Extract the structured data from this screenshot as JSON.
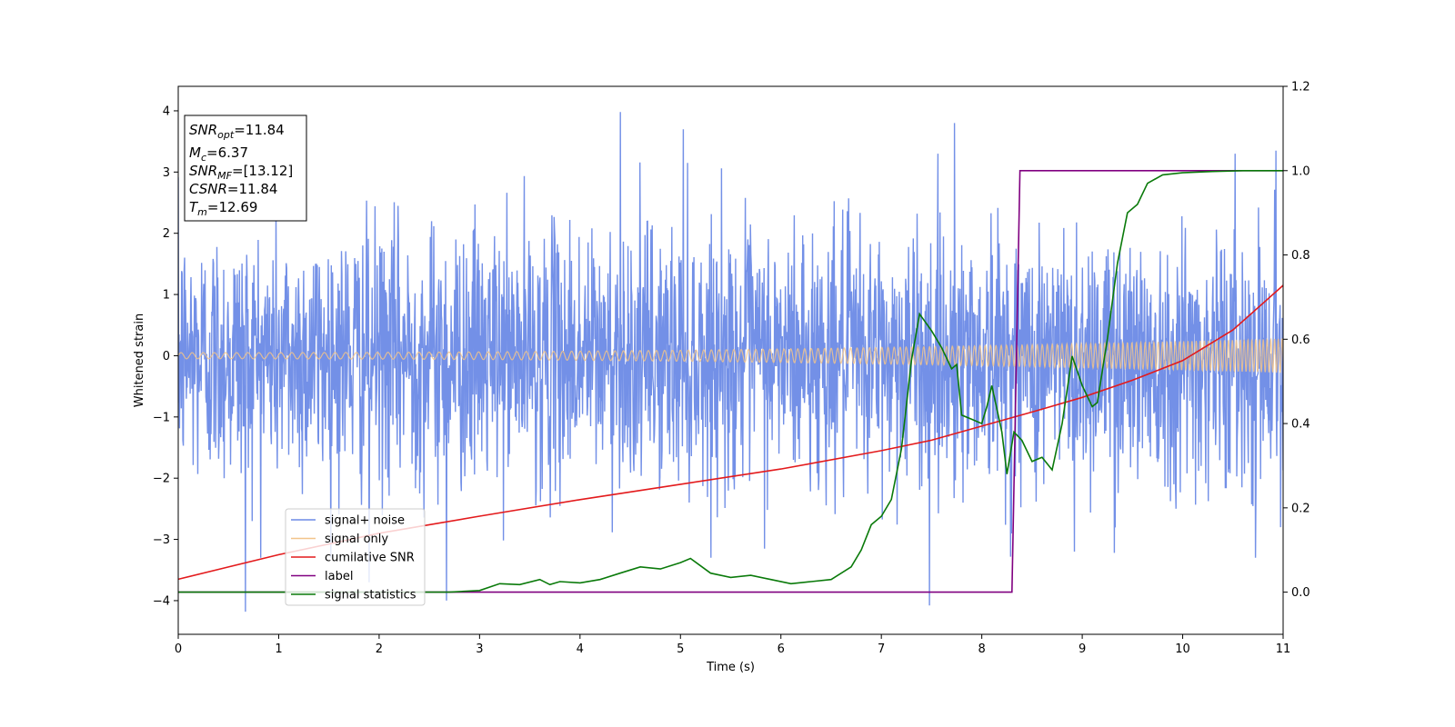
{
  "chart_data": {
    "type": "line",
    "xlabel": "Time (s)",
    "ylabel": "Whitened strain",
    "xlim": [
      0,
      11
    ],
    "ylim": [
      -4.55,
      4.4
    ],
    "y2lim": [
      -0.1,
      1.2
    ],
    "x_ticks": [
      0,
      1,
      2,
      3,
      4,
      5,
      6,
      7,
      8,
      9,
      10,
      11
    ],
    "y_ticks": [
      -4,
      -3,
      -2,
      -1,
      0,
      1,
      2,
      3,
      4
    ],
    "y2_ticks": [
      0.0,
      0.2,
      0.4,
      0.6,
      0.8,
      1.0,
      1.2
    ],
    "y2_tick_labels": [
      "0.0",
      "0.2",
      "0.4",
      "0.6",
      "0.8",
      "1.0",
      "1.2"
    ],
    "grid": false,
    "legend": {
      "placement": "lower-left",
      "entries": [
        "signal+ noise",
        "signal only",
        "cumilative SNR",
        "label",
        "signal statistics"
      ]
    },
    "annotation": {
      "lines": [
        {
          "base": "SNR",
          "sub": "opt",
          "value": "=11.84"
        },
        {
          "base": "M",
          "sub": "c",
          "value": "=6.37"
        },
        {
          "base": "SNR",
          "sub": "MF",
          "value": "=[13.12]"
        },
        {
          "base": "CSNR",
          "sub": "",
          "value": "=11.84"
        },
        {
          "base": "T",
          "sub": "m",
          "value": "=12.69"
        }
      ]
    },
    "series": [
      {
        "name": "signal+ noise",
        "axis": "left",
        "color": "#6b8ae6",
        "kind": "noise",
        "std": 1.05,
        "extremes": [
          [
            0.67,
            -4.18
          ],
          [
            1.9,
            -3.7
          ],
          [
            4.4,
            3.98
          ],
          [
            2.67,
            -4.0
          ],
          [
            5.03,
            3.7
          ],
          [
            7.48,
            -4.08
          ],
          [
            7.73,
            3.8
          ],
          [
            10.93,
            3.35
          ],
          [
            9.32,
            -3.22
          ],
          [
            8.92,
            -3.2
          ]
        ]
      },
      {
        "name": "signal only",
        "axis": "left",
        "color": "#f2c48a",
        "kind": "chirp",
        "amplitude_start": 0.05,
        "amplitude_end": 0.28
      },
      {
        "name": "cumilative SNR",
        "axis": "left",
        "color": "#e31a1c",
        "x": [
          0,
          0.5,
          1,
          2,
          3,
          4,
          5,
          6,
          7,
          7.5,
          8,
          8.5,
          9,
          9.5,
          10,
          10.5,
          11
        ],
        "y": [
          -3.65,
          -3.45,
          -3.25,
          -2.9,
          -2.62,
          -2.35,
          -2.1,
          -1.85,
          -1.55,
          -1.38,
          -1.15,
          -0.92,
          -0.68,
          -0.4,
          -0.08,
          0.42,
          1.15
        ]
      },
      {
        "name": "label",
        "axis": "right",
        "color": "#800080",
        "x": [
          0,
          8.3,
          8.38,
          11
        ],
        "y": [
          0.0,
          0.0,
          1.0,
          1.0
        ]
      },
      {
        "name": "signal statistics",
        "axis": "right",
        "color": "#0a7a0a",
        "x": [
          0,
          1,
          2,
          2.7,
          3,
          3.2,
          3.4,
          3.6,
          3.7,
          3.8,
          4.0,
          4.2,
          4.4,
          4.6,
          4.8,
          5.0,
          5.1,
          5.3,
          5.5,
          5.7,
          5.9,
          6.1,
          6.3,
          6.5,
          6.7,
          6.8,
          6.9,
          7.0,
          7.1,
          7.2,
          7.3,
          7.38,
          7.5,
          7.6,
          7.7,
          7.75,
          7.8,
          7.9,
          8.0,
          8.05,
          8.1,
          8.2,
          8.25,
          8.32,
          8.4,
          8.5,
          8.6,
          8.7,
          8.8,
          8.9,
          9.0,
          9.1,
          9.15,
          9.25,
          9.35,
          9.45,
          9.55,
          9.65,
          9.8,
          10.0,
          10.3,
          10.6,
          11.0
        ],
        "y": [
          0.0,
          0.0,
          0.0,
          0.0,
          0.004,
          0.02,
          0.018,
          0.03,
          0.018,
          0.025,
          0.022,
          0.03,
          0.045,
          0.06,
          0.055,
          0.07,
          0.08,
          0.045,
          0.035,
          0.04,
          0.03,
          0.02,
          0.025,
          0.03,
          0.06,
          0.1,
          0.16,
          0.18,
          0.22,
          0.34,
          0.55,
          0.66,
          0.62,
          0.58,
          0.53,
          0.54,
          0.42,
          0.41,
          0.4,
          0.44,
          0.49,
          0.38,
          0.28,
          0.38,
          0.36,
          0.31,
          0.32,
          0.29,
          0.4,
          0.56,
          0.49,
          0.44,
          0.45,
          0.6,
          0.78,
          0.9,
          0.92,
          0.97,
          0.99,
          0.995,
          0.998,
          1.0,
          1.0
        ]
      }
    ]
  }
}
